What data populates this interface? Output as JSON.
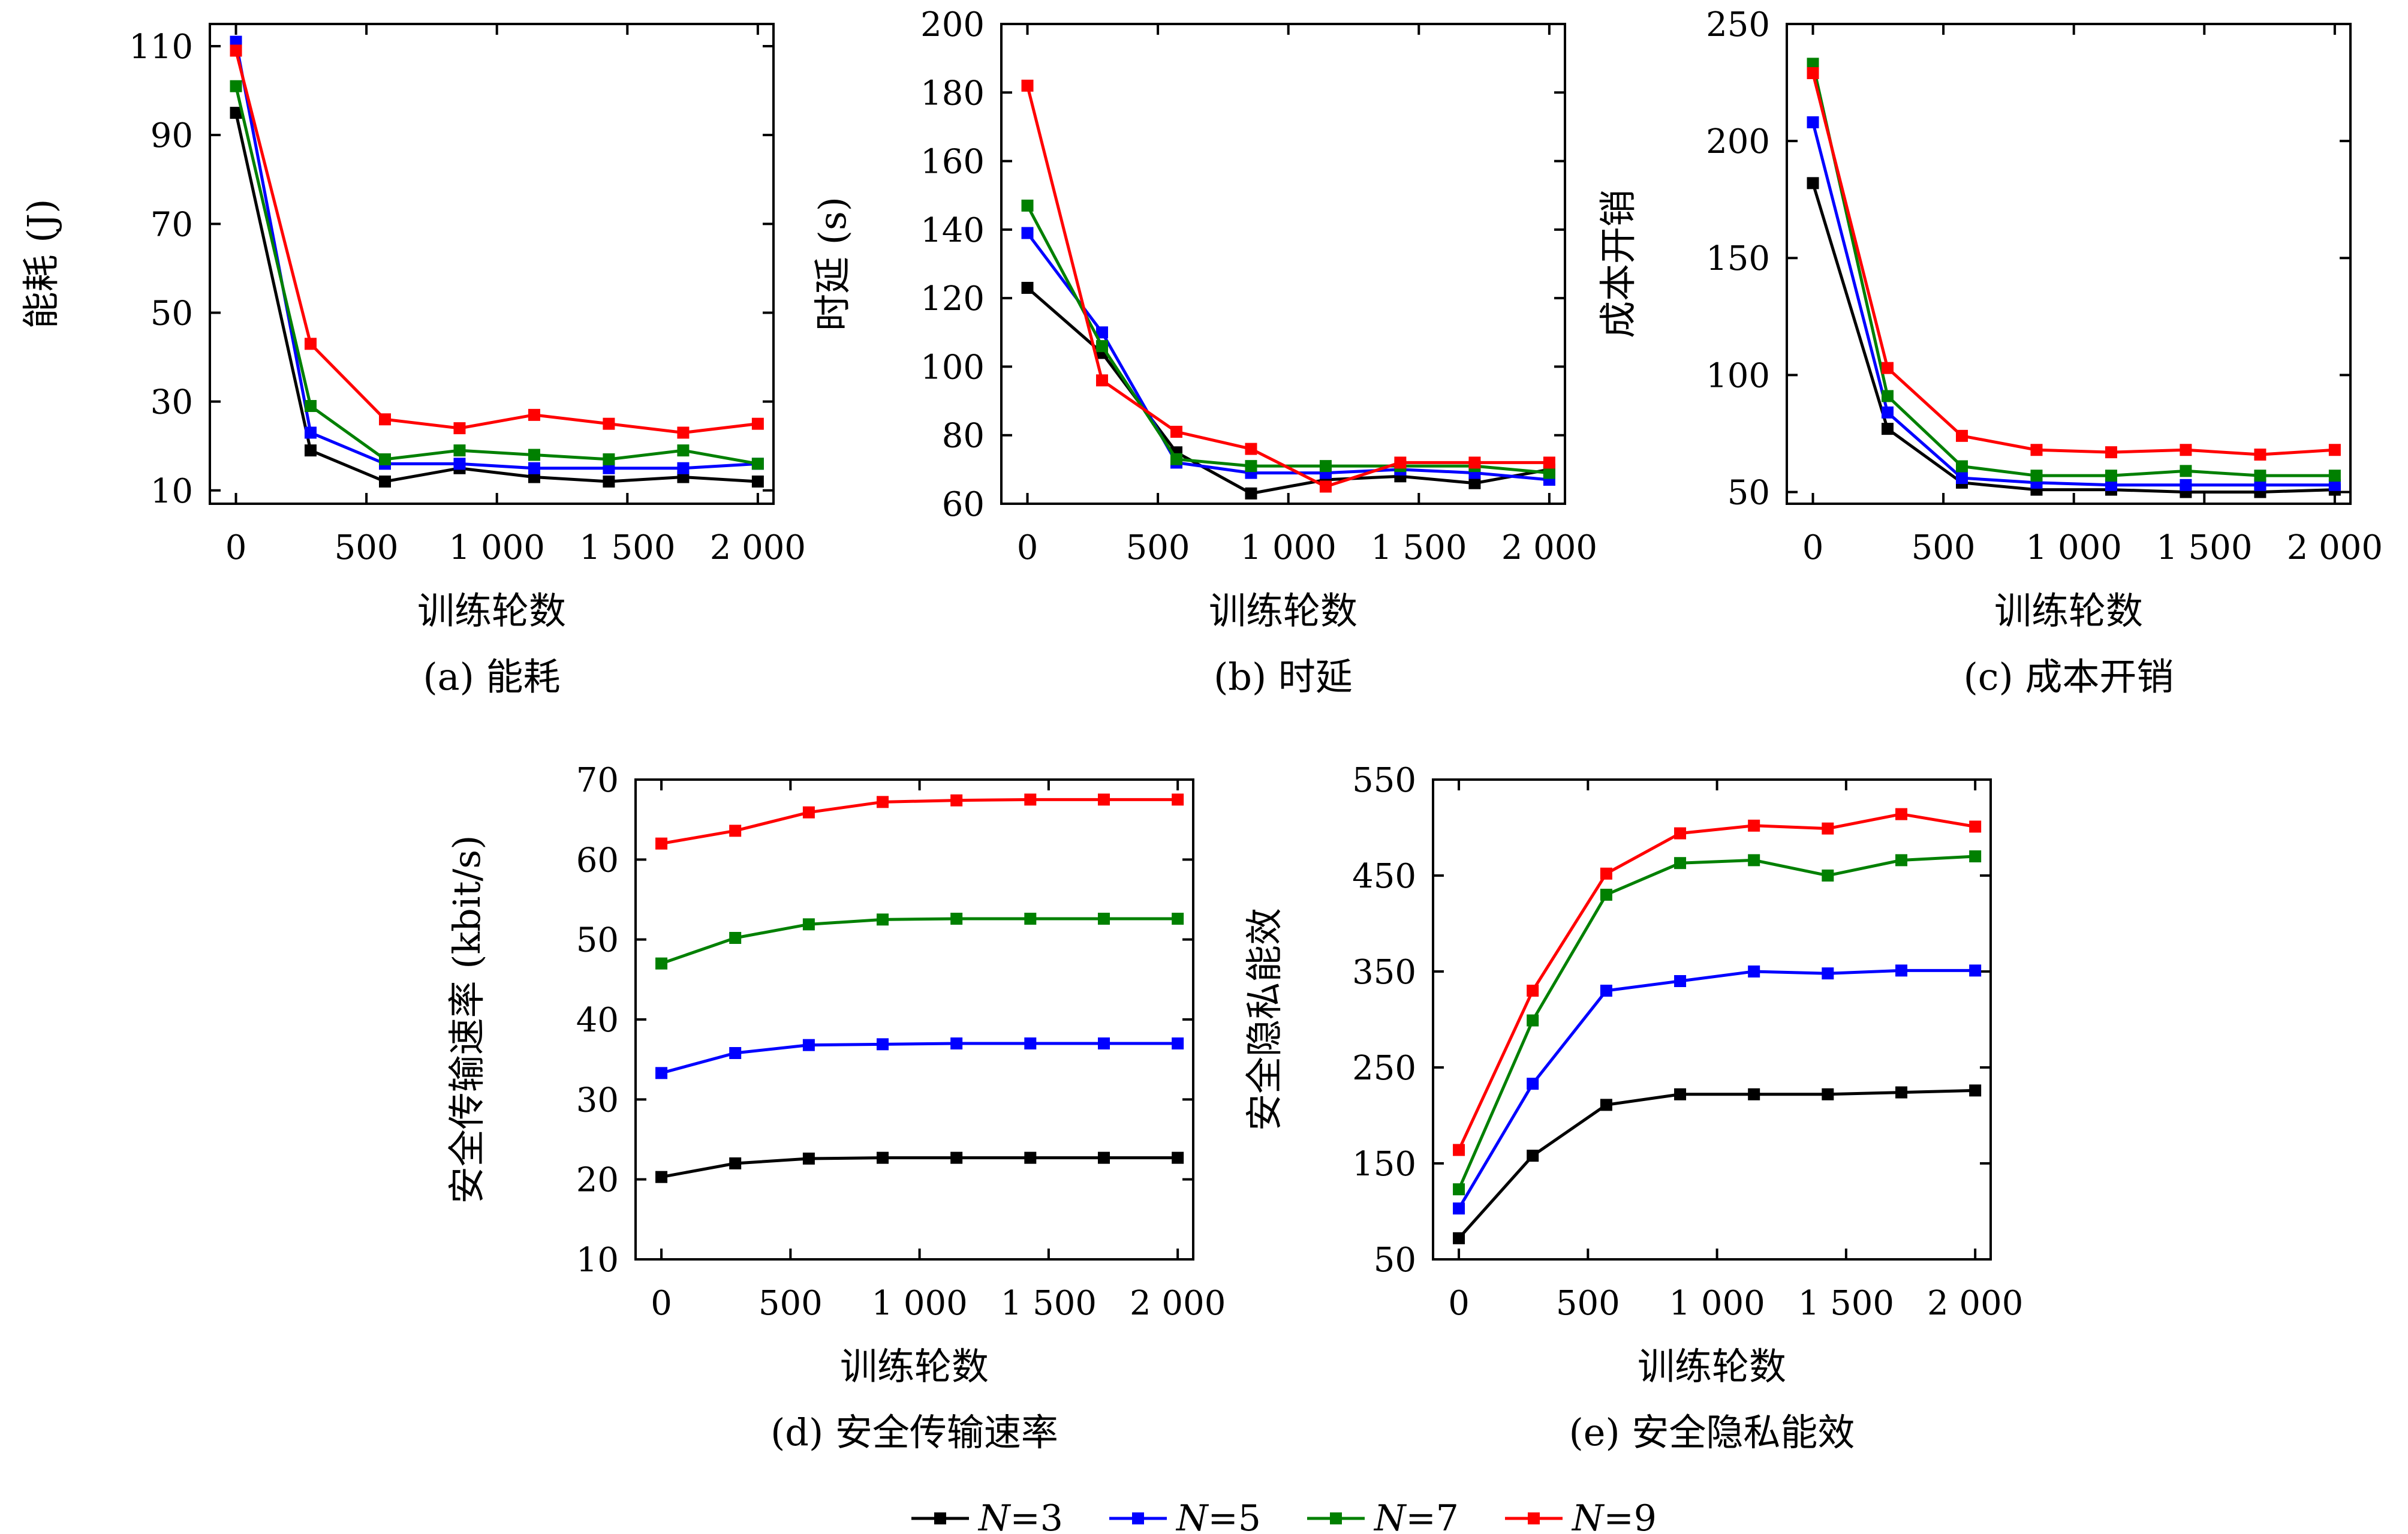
{
  "series_styles": [
    {
      "color": "#000000"
    },
    {
      "color": "#0000ff"
    },
    {
      "color": "#008000"
    },
    {
      "color": "#ff0000"
    }
  ],
  "legend": [
    {
      "var": "N",
      "text": "=3"
    },
    {
      "var": "N",
      "text": "=5"
    },
    {
      "var": "N",
      "text": "=7"
    },
    {
      "var": "N",
      "text": "=9"
    }
  ],
  "chart_data": [
    {
      "type": "line",
      "caption": "(a) 能耗",
      "xlabel": "训练轮数",
      "ylabel": "能耗 (J)",
      "xlim": [
        -100,
        2060
      ],
      "ylim": [
        7,
        115
      ],
      "xticks": [
        0,
        500,
        1000,
        1500,
        2000
      ],
      "xtick_labels": [
        "0",
        "500",
        "1 000",
        "1 500",
        "2 000"
      ],
      "yticks": [
        10,
        30,
        50,
        70,
        90,
        110
      ],
      "ytick_labels": [
        "10",
        "30",
        "50",
        "70",
        "90",
        "110"
      ],
      "x": [
        0,
        286,
        571,
        857,
        1143,
        1429,
        1714,
        2000
      ],
      "series": [
        {
          "name": "N=3",
          "values": [
            95,
            19,
            12,
            15,
            13,
            12,
            13,
            12
          ]
        },
        {
          "name": "N=5",
          "values": [
            111,
            23,
            16,
            16,
            15,
            15,
            15,
            16
          ]
        },
        {
          "name": "N=7",
          "values": [
            101,
            29,
            17,
            19,
            18,
            17,
            19,
            16
          ]
        },
        {
          "name": "N=9",
          "values": [
            109,
            43,
            26,
            24,
            27,
            25,
            23,
            25
          ]
        }
      ]
    },
    {
      "type": "line",
      "caption": "(b) 时延",
      "xlabel": "训练轮数",
      "ylabel": "时延 (s)",
      "xlim": [
        -100,
        2060
      ],
      "ylim": [
        60,
        200
      ],
      "xticks": [
        0,
        500,
        1000,
        1500,
        2000
      ],
      "xtick_labels": [
        "0",
        "500",
        "1 000",
        "1 500",
        "2 000"
      ],
      "yticks": [
        60,
        80,
        100,
        120,
        140,
        160,
        180,
        200
      ],
      "ytick_labels": [
        "60",
        "80",
        "100",
        "120",
        "140",
        "160",
        "180",
        "200"
      ],
      "x": [
        0,
        286,
        571,
        857,
        1143,
        1429,
        1714,
        2000
      ],
      "series": [
        {
          "name": "N=3",
          "values": [
            123,
            104,
            75,
            63,
            67,
            68,
            66,
            70
          ]
        },
        {
          "name": "N=5",
          "values": [
            139,
            110,
            72,
            69,
            69,
            70,
            69,
            67
          ]
        },
        {
          "name": "N=7",
          "values": [
            147,
            106,
            73,
            71,
            71,
            71,
            71,
            69
          ]
        },
        {
          "name": "N=9",
          "values": [
            182,
            96,
            81,
            76,
            65,
            72,
            72,
            72
          ]
        }
      ]
    },
    {
      "type": "line",
      "caption": "(c) 成本开销",
      "xlabel": "训练轮数",
      "ylabel": "成本开销",
      "xlim": [
        -100,
        2060
      ],
      "ylim": [
        45,
        250
      ],
      "xticks": [
        0,
        500,
        1000,
        1500,
        2000
      ],
      "xtick_labels": [
        "0",
        "500",
        "1 000",
        "1 500",
        "2 000"
      ],
      "yticks": [
        50,
        100,
        150,
        200,
        250
      ],
      "ytick_labels": [
        "50",
        "100",
        "150",
        "200",
        "250"
      ],
      "x": [
        0,
        286,
        571,
        857,
        1143,
        1429,
        1714,
        2000
      ],
      "series": [
        {
          "name": "N=3",
          "values": [
            182,
            77,
            54,
            51,
            51,
            50,
            50,
            51
          ]
        },
        {
          "name": "N=5",
          "values": [
            208,
            84,
            56,
            54,
            53,
            53,
            53,
            53
          ]
        },
        {
          "name": "N=7",
          "values": [
            233,
            91,
            61,
            57,
            57,
            59,
            57,
            57
          ]
        },
        {
          "name": "N=9",
          "values": [
            229,
            103,
            74,
            68,
            67,
            68,
            66,
            68
          ]
        }
      ]
    },
    {
      "type": "line",
      "caption": "(d) 安全传输速率",
      "xlabel": "训练轮数",
      "ylabel": "安全传输速率 (kbit/s)",
      "xlim": [
        -100,
        2060
      ],
      "ylim": [
        10,
        70
      ],
      "xticks": [
        0,
        500,
        1000,
        1500,
        2000
      ],
      "xtick_labels": [
        "0",
        "500",
        "1 000",
        "1 500",
        "2 000"
      ],
      "yticks": [
        10,
        20,
        30,
        40,
        50,
        60,
        70
      ],
      "ytick_labels": [
        "10",
        "20",
        "30",
        "40",
        "50",
        "60",
        "70"
      ],
      "x": [
        0,
        286,
        571,
        857,
        1143,
        1429,
        1714,
        2000
      ],
      "series": [
        {
          "name": "N=3",
          "values": [
            20.3,
            22,
            22.6,
            22.7,
            22.7,
            22.7,
            22.7,
            22.7
          ]
        },
        {
          "name": "N=5",
          "values": [
            33.3,
            35.8,
            36.8,
            36.9,
            37,
            37,
            37,
            37
          ]
        },
        {
          "name": "N=7",
          "values": [
            47,
            50.2,
            51.9,
            52.5,
            52.6,
            52.6,
            52.6,
            52.6
          ]
        },
        {
          "name": "N=9",
          "values": [
            62,
            63.6,
            65.9,
            67.2,
            67.4,
            67.5,
            67.5,
            67.5
          ]
        }
      ]
    },
    {
      "type": "line",
      "caption": "(e) 安全隐私能效",
      "xlabel": "训练轮数",
      "ylabel": "安全隐私能效",
      "xlim": [
        -100,
        2060
      ],
      "ylim": [
        50,
        550
      ],
      "xticks": [
        0,
        500,
        1000,
        1500,
        2000
      ],
      "xtick_labels": [
        "0",
        "500",
        "1 000",
        "1 500",
        "2 000"
      ],
      "yticks": [
        50,
        150,
        250,
        350,
        450,
        550
      ],
      "ytick_labels": [
        "50",
        "150",
        "250",
        "350",
        "450",
        "550"
      ],
      "x": [
        0,
        286,
        571,
        857,
        1143,
        1429,
        1714,
        2000
      ],
      "series": [
        {
          "name": "N=3",
          "values": [
            72,
            158,
            211,
            222,
            222,
            222,
            224,
            226
          ]
        },
        {
          "name": "N=5",
          "values": [
            103,
            233,
            330,
            340,
            350,
            348,
            351,
            351
          ]
        },
        {
          "name": "N=7",
          "values": [
            123,
            299,
            430,
            463,
            466,
            450,
            466,
            470
          ]
        },
        {
          "name": "N=9",
          "values": [
            164,
            330,
            452,
            494,
            502,
            499,
            514,
            501
          ]
        }
      ]
    }
  ]
}
